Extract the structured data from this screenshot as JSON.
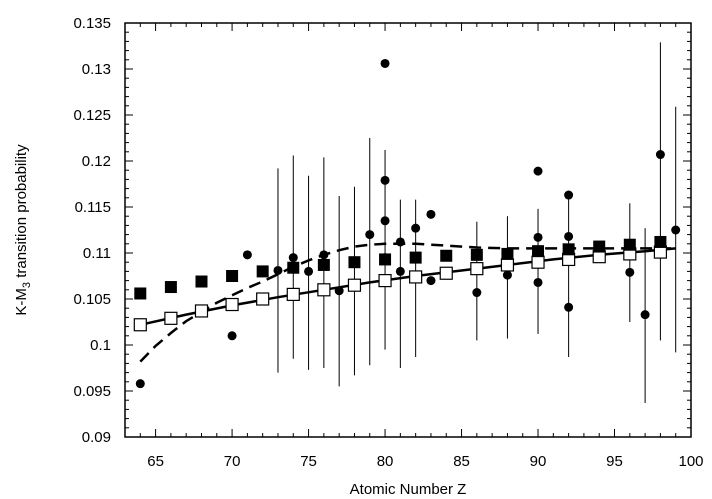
{
  "chart_data": {
    "type": "scatter",
    "xlabel": "Atomic Number Z",
    "ylabel": {
      "main": "K-M",
      "sub": "3",
      "rest": " transition probability"
    },
    "xlim": [
      63,
      100
    ],
    "ylim": [
      0.09,
      0.135
    ],
    "xticks": [
      65,
      70,
      75,
      80,
      85,
      90,
      95,
      100
    ],
    "yticks": [
      0.09,
      0.095,
      0.1,
      0.105,
      0.11,
      0.115,
      0.12,
      0.125,
      0.13,
      0.135
    ],
    "xtick_labels": [
      "65",
      "70",
      "75",
      "80",
      "85",
      "90",
      "95",
      "100"
    ],
    "ytick_labels": [
      "0.09",
      "0.095",
      "0.1",
      "0.105",
      "0.11",
      "0.115",
      "0.12",
      "0.125",
      "0.13",
      "0.135"
    ],
    "grid": false,
    "series": [
      {
        "kind": "filled-squares",
        "color": "#000000",
        "points": [
          [
            64,
            0.1056
          ],
          [
            66,
            0.1063
          ],
          [
            68,
            0.1069
          ],
          [
            70,
            0.1075
          ],
          [
            72,
            0.108
          ],
          [
            74,
            0.1084
          ],
          [
            76,
            0.1087
          ],
          [
            78,
            0.109
          ],
          [
            80,
            0.1093
          ],
          [
            82,
            0.1095
          ],
          [
            84,
            0.1097
          ],
          [
            86,
            0.1098
          ],
          [
            88,
            0.1099
          ],
          [
            90,
            0.1102
          ],
          [
            92,
            0.1104
          ],
          [
            94,
            0.1107
          ],
          [
            96,
            0.1109
          ],
          [
            98,
            0.1112
          ]
        ]
      },
      {
        "kind": "open-squares",
        "color": "#000000",
        "points": [
          [
            64,
            0.1022
          ],
          [
            66,
            0.1029
          ],
          [
            68,
            0.1037
          ],
          [
            70,
            0.1044
          ],
          [
            72,
            0.105
          ],
          [
            74,
            0.1055
          ],
          [
            76,
            0.106
          ],
          [
            78,
            0.1065
          ],
          [
            80,
            0.107
          ],
          [
            82,
            0.1074
          ],
          [
            84,
            0.1078
          ],
          [
            86,
            0.1083
          ],
          [
            88,
            0.1087
          ],
          [
            90,
            0.109
          ],
          [
            92,
            0.1093
          ],
          [
            94,
            0.1096
          ],
          [
            96,
            0.1099
          ],
          [
            98,
            0.1101
          ]
        ]
      },
      {
        "kind": "filled-circles",
        "color": "#000000",
        "points": [
          [
            64,
            0.0958
          ],
          [
            70,
            0.101
          ],
          [
            71,
            0.1098
          ],
          [
            73,
            0.1081
          ],
          [
            74,
            0.1095
          ],
          [
            75,
            0.108
          ],
          [
            76,
            0.1098
          ],
          [
            77,
            0.1059
          ],
          [
            79,
            0.112
          ],
          [
            80,
            0.1306
          ],
          [
            80,
            0.1179
          ],
          [
            80,
            0.1135
          ],
          [
            80,
            0.1095
          ],
          [
            81,
            0.1112
          ],
          [
            81,
            0.108
          ],
          [
            82,
            0.1127
          ],
          [
            83,
            0.107
          ],
          [
            83,
            0.1142
          ],
          [
            86,
            0.1057
          ],
          [
            88,
            0.1076
          ],
          [
            90,
            0.1189
          ],
          [
            90,
            0.1117
          ],
          [
            90,
            0.1068
          ],
          [
            92,
            0.1163
          ],
          [
            92,
            0.1118
          ],
          [
            92,
            0.1041
          ],
          [
            96,
            0.1079
          ],
          [
            97,
            0.1033
          ],
          [
            98,
            0.1207
          ],
          [
            99,
            0.1125
          ]
        ]
      },
      {
        "kind": "error-bars",
        "color": "#000000",
        "bars": [
          [
            73,
            0.097,
            0.1192
          ],
          [
            74,
            0.0985,
            0.1206
          ],
          [
            75,
            0.0973,
            0.1184
          ],
          [
            76,
            0.0975,
            0.1204
          ],
          [
            77,
            0.0955,
            0.1162
          ],
          [
            78,
            0.0967,
            0.1172
          ],
          [
            79,
            0.0978,
            0.1225
          ],
          [
            80,
            0.0995,
            0.1212
          ],
          [
            81,
            0.0975,
            0.1158
          ],
          [
            82,
            0.0987,
            0.1158
          ],
          [
            86,
            0.1005,
            0.1134
          ],
          [
            88,
            0.1007,
            0.114
          ],
          [
            90,
            0.1012,
            0.1148
          ],
          [
            92,
            0.0987,
            0.1161
          ],
          [
            96,
            0.1025,
            0.1154
          ],
          [
            97,
            0.0937,
            0.1127
          ],
          [
            98,
            0.1005,
            0.1329
          ],
          [
            99,
            0.0992,
            0.1259
          ]
        ]
      },
      {
        "kind": "solid-line",
        "color": "#000000",
        "points": [
          [
            64,
            0.1022
          ],
          [
            67,
            0.1033
          ],
          [
            70,
            0.1043
          ],
          [
            73,
            0.1052
          ],
          [
            76,
            0.106
          ],
          [
            79,
            0.1068
          ],
          [
            82,
            0.1075
          ],
          [
            85,
            0.1081
          ],
          [
            88,
            0.1087
          ],
          [
            91,
            0.1093
          ],
          [
            94,
            0.1098
          ],
          [
            97,
            0.1102
          ],
          [
            99,
            0.1105
          ]
        ]
      },
      {
        "kind": "dashed-line",
        "color": "#000000",
        "points": [
          [
            64,
            0.0982
          ],
          [
            65,
            0.0999
          ],
          [
            66,
            0.1013
          ],
          [
            67,
            0.1026
          ],
          [
            68,
            0.1036
          ],
          [
            69,
            0.1046
          ],
          [
            70,
            0.1054
          ],
          [
            71,
            0.1062
          ],
          [
            72,
            0.1069
          ],
          [
            73,
            0.1077
          ],
          [
            74,
            0.1085
          ],
          [
            75,
            0.1092
          ],
          [
            76,
            0.1098
          ],
          [
            77,
            0.1103
          ],
          [
            78,
            0.1107
          ],
          [
            79,
            0.1109
          ],
          [
            80,
            0.111
          ],
          [
            82,
            0.111
          ],
          [
            84,
            0.1108
          ],
          [
            86,
            0.1106
          ],
          [
            88,
            0.1105
          ],
          [
            90,
            0.1105
          ],
          [
            92,
            0.1105
          ],
          [
            94,
            0.1105
          ],
          [
            96,
            0.1105
          ],
          [
            98,
            0.1105
          ],
          [
            99,
            0.1105
          ]
        ]
      }
    ]
  }
}
